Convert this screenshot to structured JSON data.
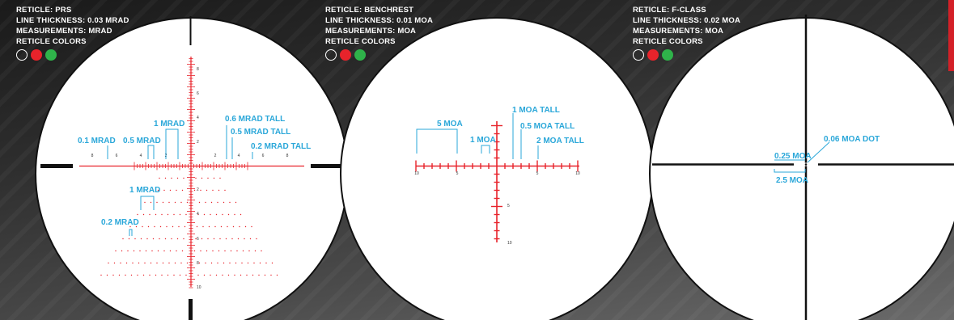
{
  "scopes": [
    {
      "reticle_label": "RETICLE: PRS",
      "thickness_label": "LINE THICKNESS: 0.03 MRAD",
      "measurements_label": "MEASUREMENTS: MRAD",
      "colors_label": "RETICLE COLORS",
      "callouts": {
        "mrad_01": "0.1 MRAD",
        "mrad_05": "0.5 MRAD",
        "mrad_1": "1 MRAD",
        "mrad_06_tall": "0.6 MRAD TALL",
        "mrad_05_tall": "0.5 MRAD TALL",
        "mrad_02_tall": "0.2 MRAD TALL",
        "mrad_1_lower": "1 MRAD",
        "mrad_02_lower": "0.2 MRAD"
      },
      "h_ticks": [
        "8",
        "6",
        "4",
        "2",
        "2",
        "4",
        "6",
        "8"
      ],
      "v_ticks_up": [
        "8",
        "6",
        "4",
        "2"
      ],
      "v_ticks_down": [
        "2",
        "4",
        "6",
        "8",
        "10"
      ]
    },
    {
      "reticle_label": "RETICLE: BENCHREST",
      "thickness_label": "LINE THICKNESS: 0.01 MOA",
      "measurements_label": "MEASUREMENTS: MOA",
      "colors_label": "RETICLE COLORS",
      "callouts": {
        "moa_5": "5 MOA",
        "moa_1": "1 MOA",
        "moa_1_tall": "1 MOA TALL",
        "moa_05_tall": "0.5 MOA TALL",
        "moa_2_tall": "2 MOA TALL"
      },
      "h_ticks": [
        "10",
        "5",
        "5",
        "10"
      ],
      "v_ticks": [
        "5",
        "10"
      ]
    },
    {
      "reticle_label": "RETICLE: F-CLASS",
      "thickness_label": "LINE THICKNESS: 0.02 MOA",
      "measurements_label": "MEASUREMENTS: MOA",
      "colors_label": "RETICLE COLORS",
      "callouts": {
        "dot": "0.06 MOA DOT",
        "moa_025": "0.25 MOA",
        "moa_25": "2.5 MOA"
      }
    }
  ],
  "colors": {
    "reticle_red": "#e8232b",
    "callout_blue": "#2aa7d9",
    "swatch_white": "#ffffff",
    "swatch_red": "#e8232b",
    "swatch_green": "#2fb34a"
  }
}
